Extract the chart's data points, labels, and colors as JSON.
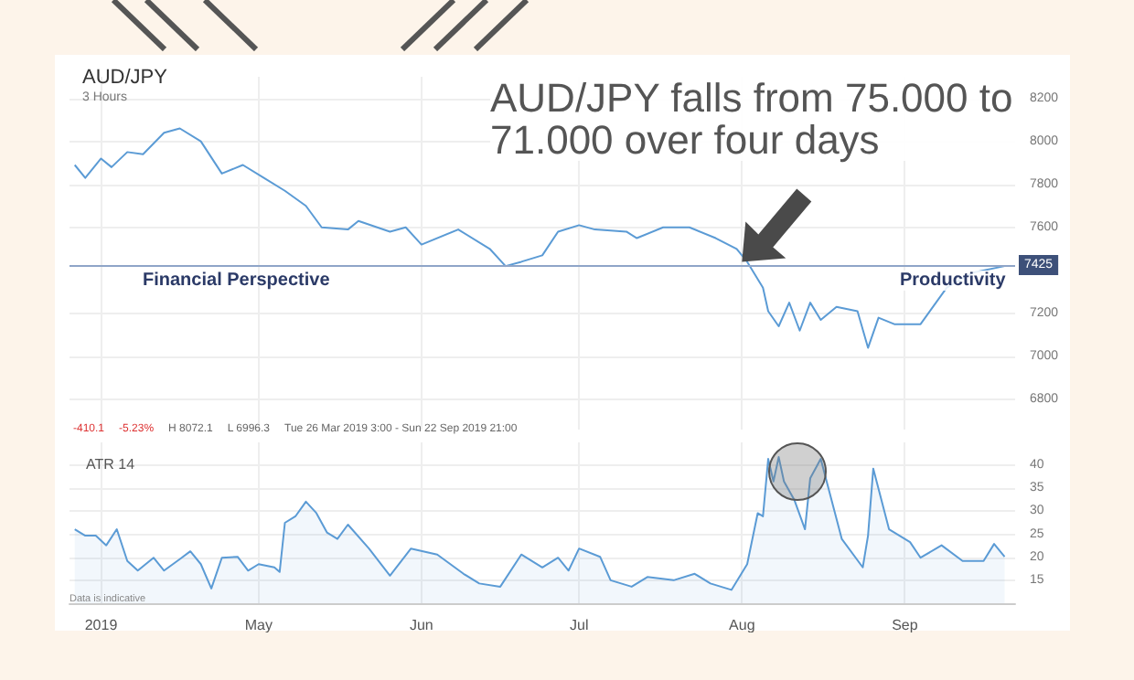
{
  "chart_data": [
    {
      "type": "line",
      "title": "AUD/JPY",
      "subtitle": "3 Hours",
      "color": "#5b9bd5",
      "marker": "none",
      "grid": true,
      "tick_labels": "y",
      "x": [
        "2019-03-27",
        "2019-03-29",
        "2019-04-01",
        "2019-04-03",
        "2019-04-06",
        "2019-04-09",
        "2019-04-13",
        "2019-04-16",
        "2019-04-20",
        "2019-04-24",
        "2019-04-28",
        "2019-05-02",
        "2019-05-06",
        "2019-05-10",
        "2019-05-13",
        "2019-05-18",
        "2019-05-20",
        "2019-05-26",
        "2019-05-29",
        "2019-06-01",
        "2019-06-08",
        "2019-06-14",
        "2019-06-17",
        "2019-06-20",
        "2019-06-24",
        "2019-06-27",
        "2019-07-01",
        "2019-07-04",
        "2019-07-10",
        "2019-07-12",
        "2019-07-17",
        "2019-07-22",
        "2019-07-27",
        "2019-07-31",
        "2019-08-02",
        "2019-08-05",
        "2019-08-06",
        "2019-08-08",
        "2019-08-10",
        "2019-08-12",
        "2019-08-14",
        "2019-08-16",
        "2019-08-19",
        "2019-08-23",
        "2019-08-25",
        "2019-08-27",
        "2019-08-30",
        "2019-09-04",
        "2019-09-09",
        "2019-09-14",
        "2019-09-20"
      ],
      "values": [
        7890,
        7830,
        7920,
        7880,
        7950,
        7940,
        8040,
        8060,
        8000,
        7850,
        7890,
        7830,
        7770,
        7700,
        7600,
        7590,
        7630,
        7580,
        7600,
        7520,
        7590,
        7500,
        7420,
        7440,
        7470,
        7580,
        7610,
        7590,
        7580,
        7550,
        7600,
        7600,
        7550,
        7500,
        7440,
        7320,
        7210,
        7140,
        7250,
        7120,
        7250,
        7170,
        7230,
        7210,
        7040,
        7180,
        7150,
        7150,
        7320,
        7390,
        7420
      ],
      "xlim": [
        "2019-03-26",
        "2019-09-22"
      ],
      "xticks": [
        {
          "value": "2019-04-01",
          "label": null
        },
        {
          "value": "2019-05-01",
          "label": null
        },
        {
          "value": "2019-06-01",
          "label": null
        },
        {
          "value": "2019-07-01",
          "label": null
        },
        {
          "value": "2019-08-01",
          "label": null
        },
        {
          "value": "2019-09-01",
          "label": null
        }
      ],
      "ylim": [
        6660,
        8300
      ],
      "yticks": [
        6800,
        7000,
        7200,
        7600,
        7800,
        8000,
        8200
      ],
      "ref_lines": [
        {
          "axis": "y",
          "value": 7425,
          "label": "7425",
          "color": "#8fa5c8"
        }
      ],
      "annotations": [
        {
          "text": "AUD/JPY falls from 75.000 to 71.000 over four days",
          "x": "2019-08-01",
          "y": 7440
        },
        "Financial Perspective",
        "Productivity",
        "-410.1",
        "-5.23%",
        "H 8072.1",
        "L 6996.3",
        "Tue 26 Mar 2019 3:00 - Sun 22 Sep 2019 21:00"
      ]
    },
    {
      "type": "area",
      "title": "ATR 14",
      "color": "#5b9bd5",
      "marker": "none",
      "grid": true,
      "x": [
        "2019-03-27",
        "2019-03-29",
        "2019-03-31",
        "2019-04-02",
        "2019-04-04",
        "2019-04-06",
        "2019-04-08",
        "2019-04-11",
        "2019-04-13",
        "2019-04-16",
        "2019-04-18",
        "2019-04-20",
        "2019-04-22",
        "2019-04-24",
        "2019-04-27",
        "2019-04-29",
        "2019-05-01",
        "2019-05-04",
        "2019-05-05",
        "2019-05-06",
        "2019-05-08",
        "2019-05-10",
        "2019-05-12",
        "2019-05-14",
        "2019-05-16",
        "2019-05-18",
        "2019-05-22",
        "2019-05-26",
        "2019-05-30",
        "2019-06-04",
        "2019-06-09",
        "2019-06-12",
        "2019-06-16",
        "2019-06-20",
        "2019-06-24",
        "2019-06-27",
        "2019-06-29",
        "2019-07-01",
        "2019-07-05",
        "2019-07-07",
        "2019-07-11",
        "2019-07-14",
        "2019-07-19",
        "2019-07-23",
        "2019-07-26",
        "2019-07-30",
        "2019-08-02",
        "2019-08-04",
        "2019-08-05",
        "2019-08-06",
        "2019-08-07",
        "2019-08-08",
        "2019-08-09",
        "2019-08-11",
        "2019-08-13",
        "2019-08-14",
        "2019-08-16",
        "2019-08-20",
        "2019-08-24",
        "2019-08-25",
        "2019-08-26",
        "2019-08-29",
        "2019-09-02",
        "2019-09-04",
        "2019-09-08",
        "2019-09-12",
        "2019-09-16",
        "2019-09-18",
        "2019-09-20"
      ],
      "values": [
        26.1,
        24.7,
        24.7,
        22.6,
        26.1,
        19.2,
        17.1,
        19.9,
        17.1,
        19.6,
        21.3,
        18.5,
        13.2,
        19.9,
        20.1,
        17.1,
        18.5,
        17.8,
        16.8,
        27.5,
        28.9,
        32.1,
        29.6,
        25.4,
        24.0,
        27.1,
        21.9,
        16.0,
        21.9,
        20.6,
        16.4,
        14.3,
        13.6,
        20.6,
        17.8,
        19.9,
        17.1,
        21.9,
        20.1,
        15.0,
        13.6,
        15.7,
        15.0,
        16.4,
        14.3,
        12.9,
        18.5,
        29.6,
        28.9,
        41.4,
        36.5,
        41.8,
        36.5,
        32.4,
        26.1,
        37.2,
        41.4,
        24.0,
        17.8,
        24.7,
        39.3,
        26.1,
        23.3,
        19.9,
        22.6,
        19.2,
        19.2,
        22.9,
        20.1
      ],
      "xlim": [
        "2019-03-26",
        "2019-09-22"
      ],
      "xticks": [
        {
          "value": "2019-04-01",
          "label": "2019"
        },
        {
          "value": "2019-05-01",
          "label": "May"
        },
        {
          "value": "2019-06-01",
          "label": "Jun"
        },
        {
          "value": "2019-07-01",
          "label": "Jul"
        },
        {
          "value": "2019-08-01",
          "label": "Aug"
        },
        {
          "value": "2019-09-01",
          "label": "Sep"
        }
      ],
      "ylim": [
        10,
        45
      ],
      "yticks": [
        15,
        20,
        25,
        30,
        35,
        40
      ],
      "annotations": [
        "Data is indicative"
      ]
    }
  ]
}
